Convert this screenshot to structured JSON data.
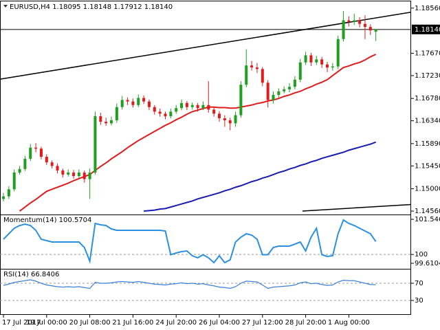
{
  "chart_data": [
    {
      "type": "candlestick",
      "title": "EURUSD,H4  1.18095 1.18148 1.17912 1.18140",
      "categories": [
        "17 Jul 2017",
        null,
        null,
        null,
        null,
        null,
        null,
        null,
        "19 Jul 00:00",
        null,
        null,
        null,
        null,
        null,
        null,
        null,
        "20 Jul 08:00",
        null,
        null,
        null,
        null,
        null,
        null,
        null,
        "21 Jul 16:00",
        null,
        null,
        null,
        null,
        null,
        null,
        null,
        "24 Jul 20:00",
        null,
        null,
        null,
        null,
        null,
        null,
        null,
        "26 Jul 04:00",
        null,
        null,
        null,
        null,
        null,
        null,
        null,
        "27 Jul 12:00",
        null,
        null,
        null,
        null,
        null,
        null,
        null,
        "28 Jul 20:00",
        null,
        null,
        null,
        null,
        null,
        null,
        null,
        "1 Aug 00:00",
        null,
        null,
        null,
        null,
        null
      ],
      "open": [
        1.148,
        1.1485,
        1.1499,
        1.1532,
        1.1539,
        1.1559,
        1.1581,
        1.1579,
        1.1563,
        1.1552,
        1.1545,
        1.1536,
        1.1528,
        1.1532,
        1.1525,
        1.1532,
        1.1519,
        1.1532,
        1.1643,
        1.1632,
        1.1629,
        1.1635,
        1.1661,
        1.1675,
        1.1672,
        1.1665,
        1.1679,
        1.1672,
        1.1661,
        1.1652,
        1.1648,
        1.1643,
        1.1652,
        1.1659,
        1.1669,
        1.1661,
        1.1665,
        1.1659,
        1.1665,
        1.1656,
        1.1648,
        1.1639,
        1.1635,
        1.1629,
        1.1645,
        1.1705,
        1.1743,
        1.1739,
        1.1736,
        1.1709,
        1.1675,
        1.1685,
        1.1692,
        1.1696,
        1.1701,
        1.1715,
        1.1749,
        1.1763,
        1.1749,
        1.1755,
        1.1745,
        1.1739,
        1.1741,
        1.1795,
        1.1832,
        1.1829,
        1.1832,
        1.1825,
        1.1819,
        1.18095
      ],
      "high": [
        1.1492,
        1.1505,
        1.1538,
        1.1545,
        1.1565,
        1.1588,
        1.159,
        1.1583,
        1.1568,
        1.1556,
        1.155,
        1.154,
        1.1538,
        1.1537,
        1.1538,
        1.1536,
        1.154,
        1.1652,
        1.165,
        1.164,
        1.1642,
        1.1668,
        1.1683,
        1.168,
        1.1678,
        1.1686,
        1.1684,
        1.1676,
        1.1665,
        1.1658,
        1.1652,
        1.1658,
        1.1665,
        1.1676,
        1.1673,
        1.167,
        1.1669,
        1.1672,
        1.1712,
        1.166,
        1.1653,
        1.1645,
        1.164,
        1.1652,
        1.1712,
        1.1775,
        1.1752,
        1.1748,
        1.174,
        1.1714,
        1.1692,
        1.1698,
        1.1702,
        1.1708,
        1.1722,
        1.1756,
        1.177,
        1.1768,
        1.1762,
        1.176,
        1.175,
        1.1748,
        1.1802,
        1.185,
        1.184,
        1.1845,
        1.1838,
        1.1842,
        1.1824,
        1.18148
      ],
      "low": [
        1.1475,
        1.148,
        1.1495,
        1.1528,
        1.1535,
        1.1555,
        1.1572,
        1.1558,
        1.1547,
        1.154,
        1.153,
        1.1522,
        1.1524,
        1.152,
        1.1521,
        1.1512,
        1.148,
        1.1528,
        1.1626,
        1.1624,
        1.1625,
        1.163,
        1.1656,
        1.1665,
        1.166,
        1.1661,
        1.1667,
        1.1655,
        1.1646,
        1.1642,
        1.1637,
        1.1639,
        1.1648,
        1.1655,
        1.1655,
        1.1656,
        1.1652,
        1.1655,
        1.165,
        1.1642,
        1.1632,
        1.1622,
        1.1615,
        1.1622,
        1.164,
        1.17,
        1.1733,
        1.1728,
        1.1702,
        1.166,
        1.1668,
        1.168,
        1.1688,
        1.169,
        1.1696,
        1.171,
        1.1744,
        1.1742,
        1.1744,
        1.1738,
        1.173,
        1.1733,
        1.1736,
        1.179,
        1.182,
        1.1823,
        1.1818,
        1.1795,
        1.1803,
        1.17912
      ],
      "close": [
        1.1485,
        1.1499,
        1.1532,
        1.1539,
        1.1559,
        1.1581,
        1.1579,
        1.1563,
        1.1552,
        1.1545,
        1.1536,
        1.1528,
        1.1532,
        1.1525,
        1.1532,
        1.1519,
        1.1532,
        1.1643,
        1.1632,
        1.1629,
        1.1635,
        1.1661,
        1.1675,
        1.1672,
        1.1665,
        1.1679,
        1.1672,
        1.1661,
        1.1652,
        1.1648,
        1.1643,
        1.1652,
        1.1659,
        1.1669,
        1.1661,
        1.1665,
        1.1659,
        1.1665,
        1.1656,
        1.1648,
        1.1639,
        1.1635,
        1.1629,
        1.1645,
        1.1705,
        1.1743,
        1.1739,
        1.1736,
        1.1709,
        1.1675,
        1.1685,
        1.1692,
        1.1696,
        1.1701,
        1.1715,
        1.1749,
        1.1763,
        1.1749,
        1.1755,
        1.1745,
        1.1739,
        1.1741,
        1.1795,
        1.1832,
        1.1829,
        1.1832,
        1.1825,
        1.1819,
        1.1812,
        1.1814
      ],
      "up_color": "#1f9e1f",
      "down_color": "#e01b1b",
      "ylim": [
        1.14493,
        1.18693
      ],
      "yticks": [
        {
          "value": 1.1856,
          "label": "1.18560"
        },
        {
          "value": 1.1767,
          "label": "1.17670"
        },
        {
          "value": 1.1723,
          "label": "1.17230"
        },
        {
          "value": 1.1678,
          "label": "1.16780"
        },
        {
          "value": 1.1634,
          "label": "1.16340"
        },
        {
          "value": 1.1589,
          "label": "1.15890"
        },
        {
          "value": 1.1545,
          "label": "1.15450"
        },
        {
          "value": 1.15,
          "label": "1.15000"
        },
        {
          "value": 1.1456,
          "label": "1.14560"
        }
      ],
      "last_price": {
        "value": 1.1814,
        "label": "1.18140"
      },
      "lines": [
        {
          "color": "#e01b1b",
          "values": [
            null,
            null,
            null,
            1.1456,
            1.1464,
            1.1472,
            1.1479,
            1.1487,
            1.1495,
            1.1499,
            1.1503,
            1.1507,
            1.1511,
            1.1516,
            1.152,
            1.1524,
            1.1528,
            1.1536,
            1.1544,
            1.1551,
            1.1559,
            1.1566,
            1.1573,
            1.1581,
            1.1588,
            1.1595,
            1.1601,
            1.1607,
            1.1613,
            1.1619,
            1.1625,
            1.163,
            1.1636,
            1.1641,
            1.1647,
            1.1652,
            1.1655,
            1.1658,
            1.1661,
            1.1661,
            1.166,
            1.166,
            1.1659,
            1.1659,
            1.1661,
            1.1663,
            1.1665,
            1.1668,
            1.167,
            1.1673,
            1.1675,
            1.1678,
            1.1682,
            1.1685,
            1.1689,
            1.1692,
            1.1697,
            1.1701,
            1.1706,
            1.171,
            1.1715,
            1.1723,
            1.1731,
            1.1739,
            1.1742,
            1.1746,
            1.1749,
            1.1754,
            1.176,
            1.1765
          ]
        },
        {
          "color": "#1a1ab0",
          "values": [
            null,
            null,
            null,
            null,
            null,
            null,
            null,
            null,
            null,
            null,
            null,
            null,
            null,
            null,
            null,
            null,
            null,
            null,
            null,
            null,
            null,
            null,
            null,
            null,
            null,
            null,
            1.1456,
            1.1457,
            1.1458,
            1.146,
            1.1461,
            1.1464,
            1.1467,
            1.147,
            1.1473,
            1.1476,
            1.148,
            1.1483,
            1.1486,
            1.1489,
            1.1492,
            1.1496,
            1.1499,
            1.1503,
            1.1506,
            1.151,
            1.1514,
            1.1517,
            1.1521,
            1.1524,
            1.1528,
            1.1532,
            1.1535,
            1.1539,
            1.1542,
            1.1546,
            1.1549,
            1.1553,
            1.1556,
            1.156,
            1.1563,
            1.1566,
            1.1569,
            1.1572,
            1.1576,
            1.1579,
            1.1582,
            1.1585,
            1.1588,
            1.1592
          ]
        }
      ],
      "trendlines": [
        {
          "color": "#000000",
          "x": [
            -0.6,
            75.5
          ],
          "values": [
            1.1716,
            1.1848
          ]
        },
        {
          "color": "#000000",
          "x": [
            55.4,
            75.5
          ],
          "values": [
            1.1456,
            1.1469
          ]
        }
      ]
    },
    {
      "type": "line",
      "title": "Momentum(14) 100.5704",
      "color": "#2a8fe0",
      "values": [
        100.669,
        100.911,
        101.153,
        101.274,
        101.335,
        101.274,
        101.063,
        100.669,
        100.609,
        100.548,
        100.548,
        100.548,
        100.548,
        100.548,
        100.548,
        100.306,
        99.701,
        101.365,
        101.305,
        101.274,
        101.123,
        101.063,
        101.063,
        101.063,
        101.063,
        101.063,
        101.063,
        101.063,
        101.063,
        101.063,
        101.032,
        99.99,
        100.064,
        100.125,
        100.155,
        99.943,
        99.852,
        99.99,
        99.852,
        99.64,
        99.943,
        99.64,
        99.761,
        100.548,
        100.76,
        100.911,
        100.851,
        100.669,
        99.99,
        99.99,
        100.306,
        100.367,
        100.367,
        100.367,
        100.457,
        100.548,
        100.155,
        100.76,
        101.153,
        99.99,
        99.913,
        99.943,
        100.911,
        101.517,
        101.365,
        101.274,
        101.153,
        101.032,
        100.911,
        100.5704
      ],
      "ylim": [
        99.6104,
        101.5468
      ],
      "yticks": [
        101.5468,
        100,
        99.6104
      ]
    },
    {
      "type": "line",
      "title": "RSI(14) 66.8406",
      "color": "#3a7fd5",
      "values": [
        65,
        68,
        72,
        74,
        76,
        78,
        75,
        70,
        66,
        64,
        62,
        61,
        62,
        61,
        62,
        60,
        58,
        72,
        70,
        70,
        71,
        73,
        74,
        73,
        72,
        74,
        72,
        70,
        68,
        67,
        66,
        68,
        69,
        71,
        69,
        70,
        68,
        69,
        66,
        64,
        61,
        60,
        58,
        62,
        70,
        75,
        74,
        73,
        66,
        58,
        61,
        62,
        63,
        64,
        66,
        71,
        73,
        69,
        70,
        67,
        65,
        66,
        73,
        77,
        76,
        76,
        73,
        70,
        67,
        66.8406
      ],
      "ylim": [
        0,
        100
      ],
      "yticks": [
        70,
        30
      ]
    }
  ]
}
